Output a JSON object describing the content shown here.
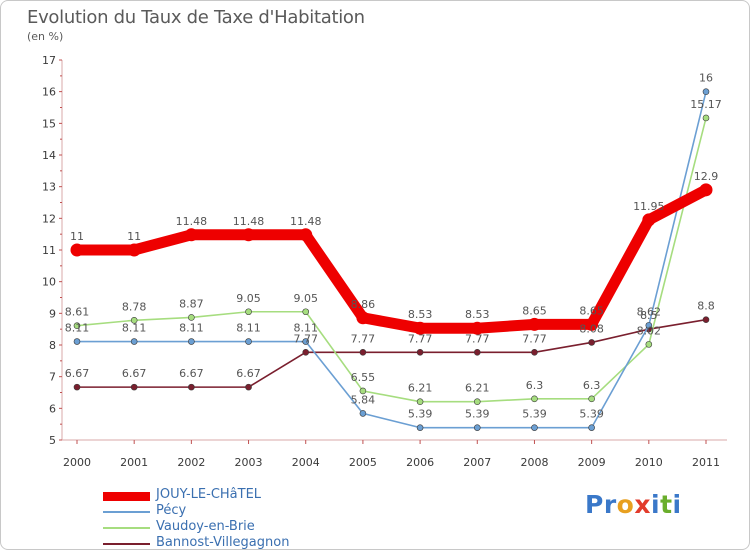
{
  "title": "Evolution du Taux de Taxe d'Habitation",
  "subtitle": "(en %)",
  "logo": {
    "text": "Proxiti",
    "colors": [
      "#3a78c9",
      "#3a78c9",
      "#e8a020",
      "#e23b2b",
      "#3a78c9",
      "#6aae2c",
      "#3a78c9"
    ]
  },
  "chart_data": {
    "type": "line",
    "title": "Evolution du Taux de Taxe d'Habitation",
    "ylabel": "(en %)",
    "xlabel": "",
    "ylim": [
      5,
      17
    ],
    "yticks": [
      5,
      6,
      7,
      8,
      9,
      10,
      11,
      12,
      13,
      14,
      15,
      16,
      17
    ],
    "categories": [
      "2000",
      "2001",
      "2002",
      "2003",
      "2004",
      "2005",
      "2006",
      "2007",
      "2008",
      "2009",
      "2010",
      "2011"
    ],
    "legend_position": "bottom-left",
    "series": [
      {
        "name": "JOUY-LE-CHâTEL",
        "color": "#ee0000",
        "values": [
          11,
          11,
          11.48,
          11.48,
          11.48,
          8.86,
          8.53,
          8.53,
          8.65,
          8.65,
          11.95,
          12.9
        ],
        "labels": [
          "11",
          "11",
          "11.48",
          "11.48",
          "11.48",
          "8.86",
          "8.53",
          "8.53",
          "8.65",
          "8.65",
          "11.95",
          "12.9"
        ]
      },
      {
        "name": "Pécy",
        "color": "#6b9fd3",
        "values": [
          8.11,
          8.11,
          8.11,
          8.11,
          8.11,
          5.84,
          5.39,
          5.39,
          5.39,
          5.39,
          8.62,
          16
        ],
        "labels": [
          "8.11",
          "8.11",
          "8.11",
          "8.11",
          "8.11",
          "5.84",
          "5.39",
          "5.39",
          "5.39",
          "5.39",
          "8.62",
          "16"
        ]
      },
      {
        "name": "Vaudoy-en-Brie",
        "color": "#a6dd7f",
        "values": [
          8.61,
          8.78,
          8.87,
          9.05,
          9.05,
          6.55,
          6.21,
          6.21,
          6.3,
          6.3,
          8.02,
          15.17
        ],
        "labels": [
          "8.61",
          "8.78",
          "8.87",
          "9.05",
          "9.05",
          "6.55",
          "6.21",
          "6.21",
          "6.3",
          "6.3",
          "8.02",
          "15.17"
        ]
      },
      {
        "name": "Bannost-Villegagnon",
        "color": "#7a1f2e",
        "values": [
          6.67,
          6.67,
          6.67,
          6.67,
          7.77,
          7.77,
          7.77,
          7.77,
          7.77,
          8.08,
          8.5,
          8.8
        ],
        "labels": [
          "6.67",
          "6.67",
          "6.67",
          "6.67",
          "7.77",
          "7.77",
          "7.77",
          "7.77",
          "7.77",
          "8.08",
          "8.5",
          "8.8"
        ]
      }
    ]
  }
}
